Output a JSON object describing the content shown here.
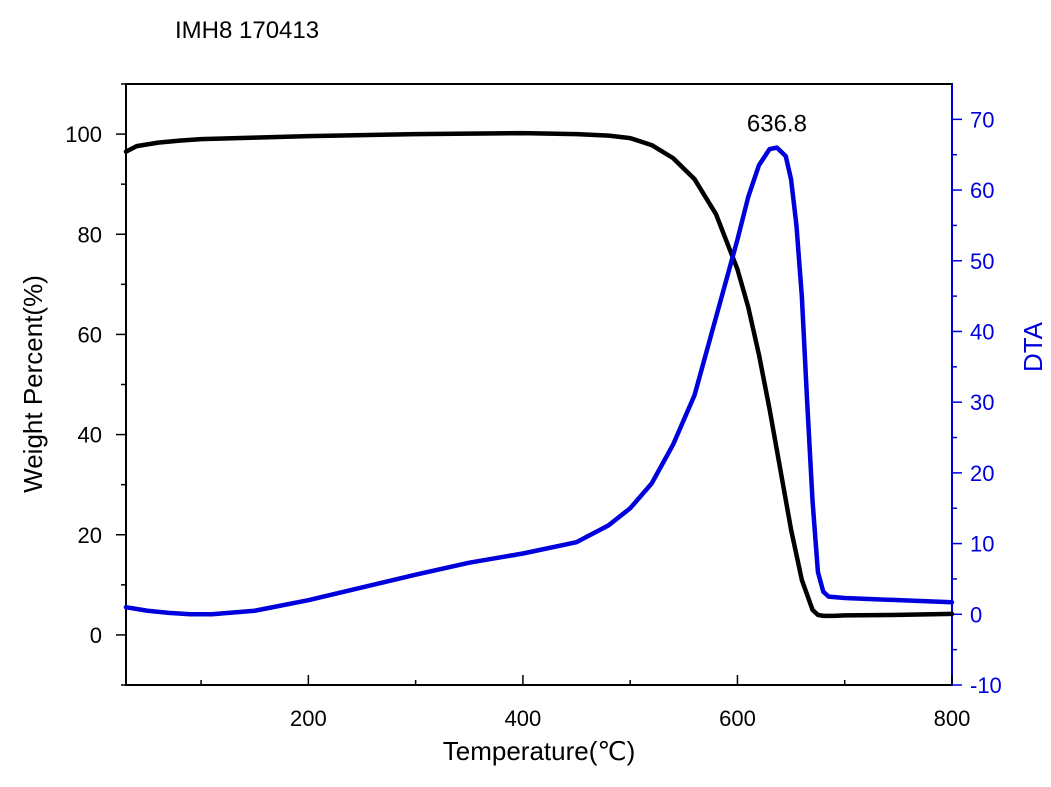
{
  "chart_data": {
    "type": "line",
    "title": "IMH8  170413",
    "xlabel": "Temperature(℃)",
    "ylabel": "Weight Percent(%)",
    "y2label": "DTA",
    "xlim": [
      30,
      800
    ],
    "ylim": [
      -10,
      110
    ],
    "y2lim": [
      -10,
      75
    ],
    "x_ticks": [
      200,
      400,
      600,
      800
    ],
    "y_ticks": [
      0,
      20,
      40,
      60,
      80,
      100
    ],
    "y2_ticks": [
      -10,
      0,
      10,
      20,
      30,
      40,
      50,
      60,
      70
    ],
    "grid": false,
    "colors": {
      "weight": "#000000",
      "dta": "#0000dd",
      "right_axis": "#0000dd"
    },
    "series": [
      {
        "axis": "left",
        "x": [
          30,
          40,
          60,
          80,
          100,
          150,
          200,
          250,
          300,
          350,
          400,
          450,
          480,
          500,
          520,
          540,
          560,
          580,
          600,
          610,
          620,
          630,
          640,
          650,
          660,
          670,
          675,
          680,
          690,
          700,
          750,
          800
        ],
        "values": [
          96.5,
          97.6,
          98.3,
          98.7,
          99.0,
          99.3,
          99.6,
          99.8,
          100.0,
          100.1,
          100.2,
          100.0,
          99.7,
          99.2,
          97.8,
          95.2,
          91.0,
          84.0,
          73.0,
          65.5,
          56.0,
          45.0,
          33.0,
          21.0,
          11.0,
          5.0,
          4.0,
          3.8,
          3.8,
          3.9,
          4.0,
          4.2
        ]
      },
      {
        "axis": "right",
        "x": [
          30,
          50,
          70,
          90,
          110,
          150,
          200,
          250,
          300,
          350,
          400,
          450,
          480,
          500,
          520,
          540,
          560,
          580,
          600,
          610,
          620,
          630,
          636.8,
          645,
          650,
          655,
          660,
          665,
          670,
          675,
          680,
          685,
          700,
          750,
          800
        ],
        "values": [
          1.0,
          0.5,
          0.2,
          0.0,
          0.0,
          0.5,
          2.0,
          3.8,
          5.6,
          7.3,
          8.6,
          10.2,
          12.6,
          15.0,
          18.5,
          24.0,
          31.0,
          42.0,
          53.0,
          59.0,
          63.5,
          65.8,
          66.0,
          64.8,
          61.5,
          55.0,
          45.0,
          30.0,
          16.0,
          6.0,
          3.2,
          2.5,
          2.3,
          2.0,
          1.7
        ]
      }
    ],
    "annotations": [
      {
        "text": "636.8",
        "x": 636.8,
        "y2": 66.0
      }
    ]
  }
}
